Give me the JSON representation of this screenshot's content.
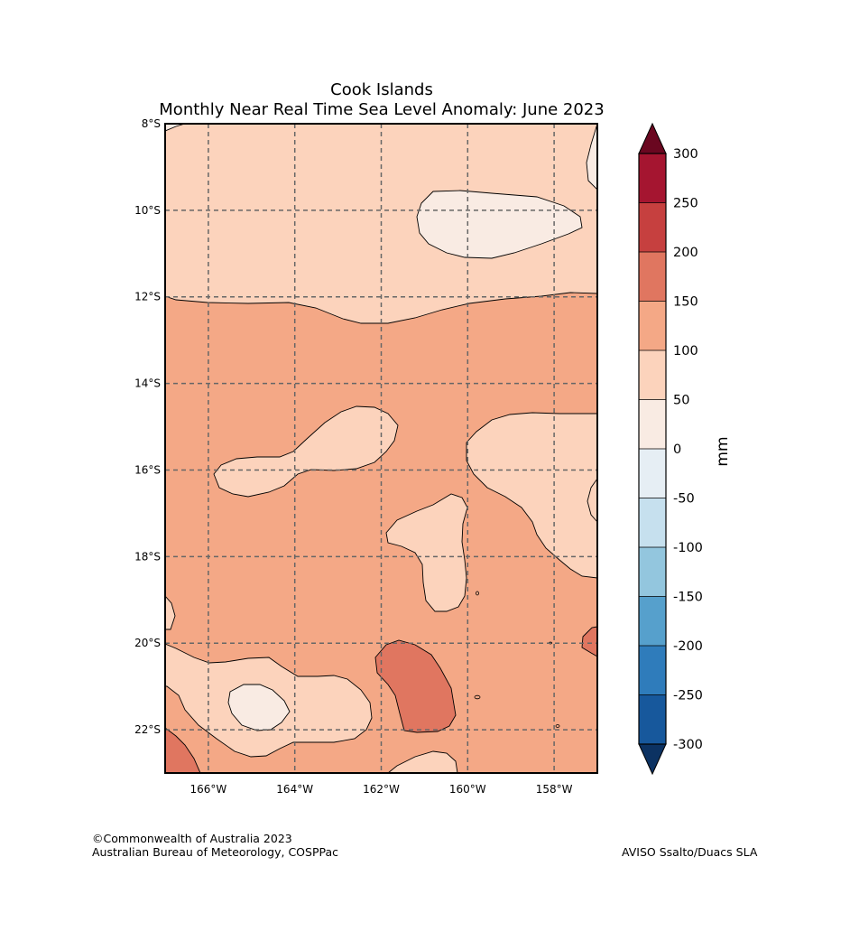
{
  "title": {
    "line1": "Cook Islands",
    "line2": "Monthly Near Real Time Sea Level Anomaly: June 2023"
  },
  "map": {
    "lat_labels": [
      "8°S",
      "10°S",
      "12°S",
      "14°S",
      "16°S",
      "18°S",
      "20°S",
      "22°S"
    ],
    "lon_labels": [
      "166°W",
      "164°W",
      "162°W",
      "160°W",
      "158°W"
    ],
    "lat_range_deg": [
      -23,
      -8
    ],
    "lon_range_deg": [
      -167,
      -157
    ],
    "regions": [
      {
        "name": "north-band",
        "anomaly_class": "50 to 100 mm",
        "color": "#fcd3bc"
      },
      {
        "name": "main-field",
        "anomaly_class": "100 to 150 mm",
        "color": "#f4a886"
      },
      {
        "name": "northeast-patch",
        "anomaly_class": "0 to 50 mm",
        "color": "#f9ebe3"
      },
      {
        "name": "south-central-patch",
        "anomaly_class": "150 to 200 mm",
        "color": "#e07660"
      }
    ]
  },
  "colorbar": {
    "unit": "mm",
    "tick_labels": [
      "300",
      "250",
      "200",
      "150",
      "100",
      "50",
      "0",
      "-50",
      "-100",
      "-150",
      "-200",
      "-250",
      "-300"
    ],
    "bands": [
      {
        "range": "250 to 300",
        "color": "#a51530"
      },
      {
        "range": "200 to 250",
        "color": "#c6403f"
      },
      {
        "range": "150 to 200",
        "color": "#e07660"
      },
      {
        "range": "100 to 150",
        "color": "#f4a886"
      },
      {
        "range": "50 to 100",
        "color": "#fcd3bc"
      },
      {
        "range": "0 to 50",
        "color": "#f9ebe3"
      },
      {
        "range": "-50 to 0",
        "color": "#e6eef4"
      },
      {
        "range": "-100 to -50",
        "color": "#c6e0ee"
      },
      {
        "range": "-150 to -100",
        "color": "#93c6de"
      },
      {
        "range": "-200 to -150",
        "color": "#56a0cc"
      },
      {
        "range": "-250 to -200",
        "color": "#2f7cbb"
      },
      {
        "range": "-300 to -250",
        "color": "#17589c"
      }
    ],
    "over_color": "#6a0720",
    "under_color": "#0c3262"
  },
  "footer": {
    "copyright": "©Commonwealth of Australia 2023",
    "agency": "Australian Bureau of Meteorology, COSPPac",
    "source": "AVISO Ssalto/Duacs SLA"
  }
}
